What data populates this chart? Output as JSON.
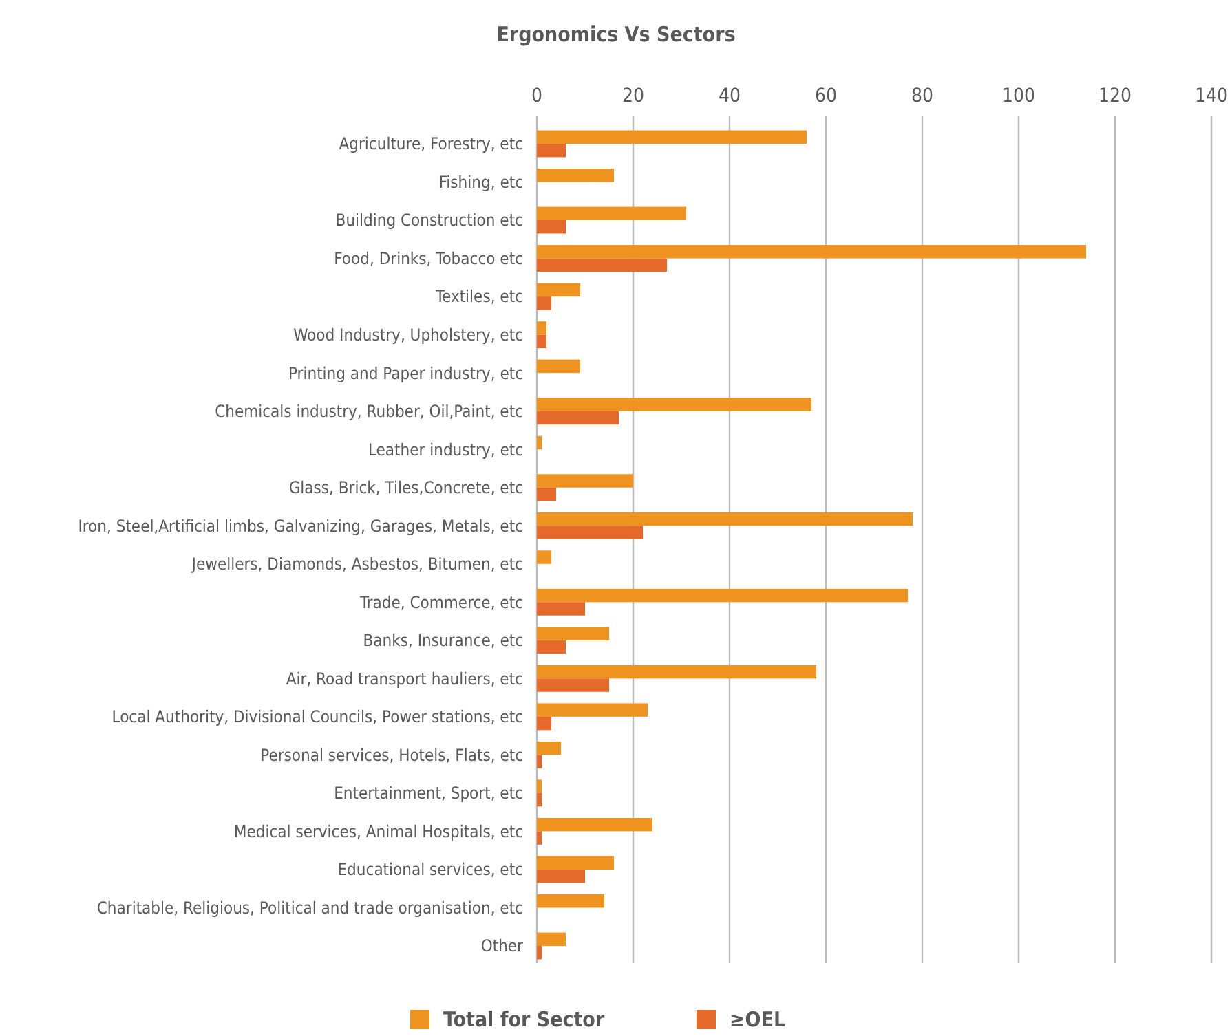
{
  "chart_data": {
    "type": "bar",
    "orientation": "horizontal",
    "title": "Ergonomics Vs Sectors",
    "categories": [
      "Agriculture, Forestry, etc",
      "Fishing, etc",
      "Building Construction  etc",
      "Food, Drinks, Tobacco etc",
      "Textiles, etc",
      "Wood Industry, Upholstery, etc",
      "Printing and Paper industry, etc",
      "Chemicals industry, Rubber, Oil,Paint, etc",
      "Leather industry, etc",
      "Glass, Brick, Tiles,Concrete, etc",
      "Iron, Steel,Artificial limbs, Galvanizing, Garages, Metals, etc",
      "Jewellers, Diamonds, Asbestos, Bitumen, etc",
      "Trade, Commerce, etc",
      "Banks, Insurance, etc",
      "Air, Road transport hauliers, etc",
      "Local Authority, Divisional Councils, Power stations, etc",
      "Personal services, Hotels, Flats, etc",
      "Entertainment, Sport, etc",
      "Medical services, Animal Hospitals, etc",
      "Educational services, etc",
      "Charitable, Religious, Political and trade organisation, etc",
      "Other"
    ],
    "series": [
      {
        "name": "Total for Sector",
        "color": "#ee9220",
        "values": [
          56,
          16,
          31,
          114,
          9,
          2,
          9,
          57,
          1,
          20,
          78,
          3,
          77,
          15,
          58,
          23,
          5,
          1,
          24,
          16,
          14,
          6
        ]
      },
      {
        "name": "≥OEL",
        "color": "#e4692a",
        "values": [
          6,
          0,
          6,
          27,
          3,
          2,
          0,
          17,
          0,
          4,
          22,
          0,
          10,
          6,
          15,
          3,
          1,
          1,
          1,
          10,
          0,
          1
        ]
      }
    ],
    "xlim": [
      0,
      140
    ],
    "xticks": [
      0,
      20,
      40,
      60,
      80,
      100,
      120,
      140
    ],
    "grid": "x",
    "legend": "bottom"
  }
}
